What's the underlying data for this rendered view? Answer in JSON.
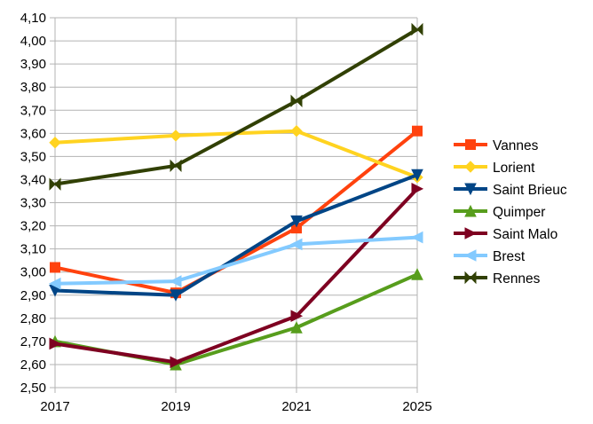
{
  "chart_data": {
    "type": "line",
    "title": "",
    "xlabel": "",
    "ylabel": "",
    "categories": [
      "2017",
      "2019",
      "2021",
      "2025"
    ],
    "ylim": [
      2.5,
      4.1
    ],
    "ytick_step": 0.1,
    "ytick_labels": [
      "2,50",
      "2,60",
      "2,70",
      "2,80",
      "2,90",
      "3,00",
      "3,10",
      "3,20",
      "3,30",
      "3,40",
      "3,50",
      "3,60",
      "3,70",
      "3,80",
      "3,90",
      "4,00",
      "4,10"
    ],
    "grid": true,
    "legend": "right",
    "series": [
      {
        "name": "Vannes",
        "color": "#ff420e",
        "marker": "square",
        "values": [
          3.02,
          2.91,
          3.19,
          3.61
        ]
      },
      {
        "name": "Lorient",
        "color": "#ffd320",
        "marker": "diamond",
        "values": [
          3.56,
          3.59,
          3.61,
          3.41
        ]
      },
      {
        "name": "Saint Brieuc",
        "color": "#004586",
        "marker": "triangle-down",
        "values": [
          2.92,
          2.9,
          3.22,
          3.42
        ]
      },
      {
        "name": "Quimper",
        "color": "#579d1c",
        "marker": "triangle-up",
        "values": [
          2.7,
          2.6,
          2.76,
          2.99
        ]
      },
      {
        "name": "Saint Malo",
        "color": "#7e0021",
        "marker": "triangle-right",
        "values": [
          2.69,
          2.61,
          2.81,
          3.36
        ]
      },
      {
        "name": "Brest",
        "color": "#83caff",
        "marker": "triangle-left",
        "values": [
          2.95,
          2.96,
          3.12,
          3.15
        ]
      },
      {
        "name": "Rennes",
        "color": "#314004",
        "marker": "bowtie",
        "values": [
          3.38,
          3.46,
          3.74,
          4.05
        ]
      }
    ]
  }
}
